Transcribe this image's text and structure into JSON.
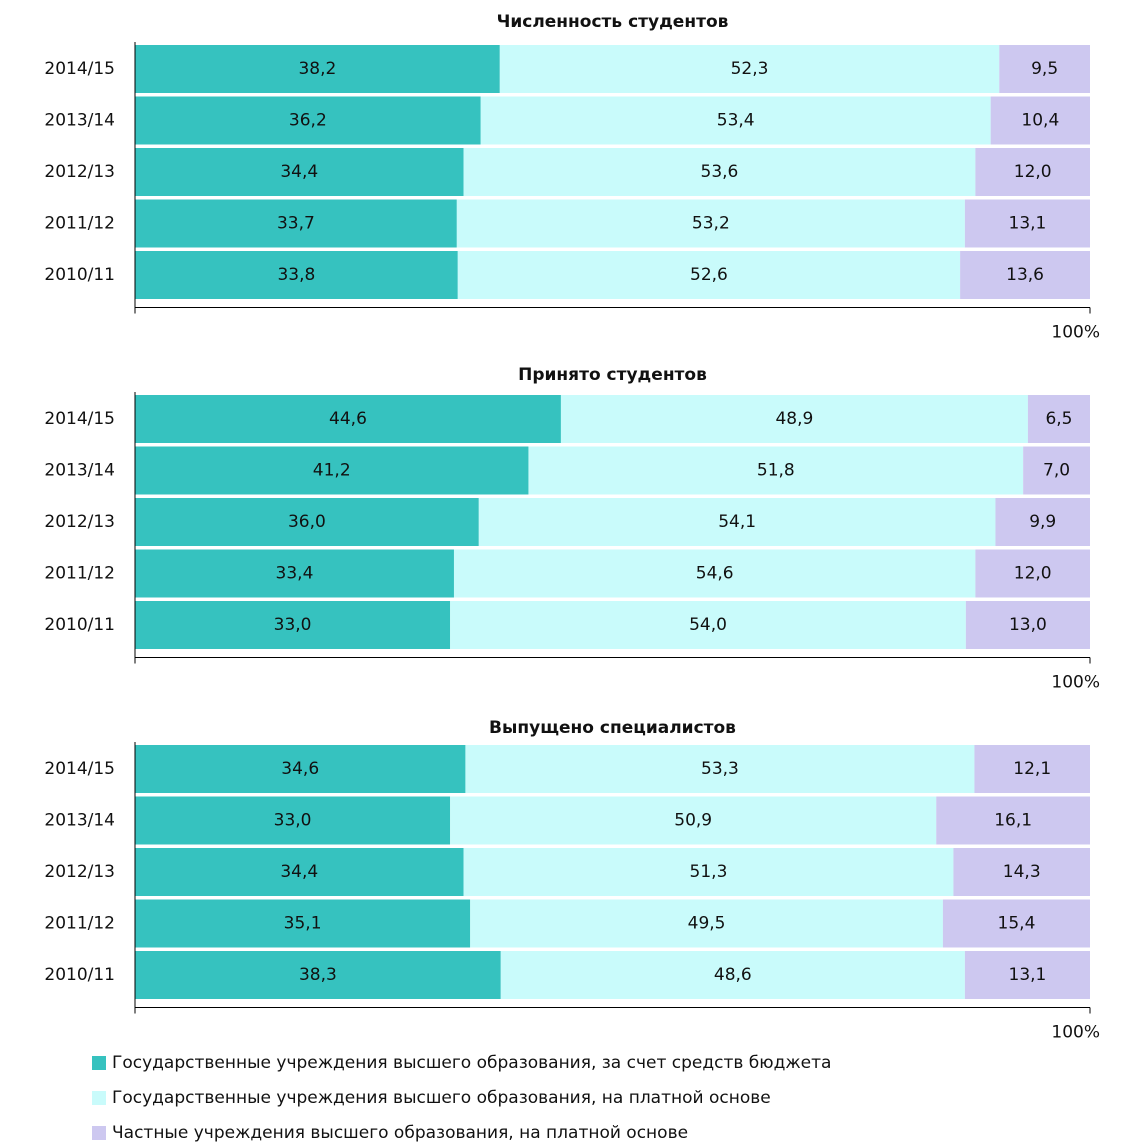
{
  "chart_data": [
    {
      "type": "stacked_bar_horizontal",
      "title": "Численность студентов",
      "categories": [
        "2014/15",
        "2013/14",
        "2012/13",
        "2011/12",
        "2010/11"
      ],
      "xlim": [
        0,
        100
      ],
      "xticks": [
        {
          "value": 100,
          "label": "100%"
        }
      ],
      "series": [
        {
          "name": "Государственные учреждения высшего образования, за счет средств бюджета",
          "color": "#36c2bf",
          "values": [
            38.2,
            36.2,
            34.4,
            33.7,
            33.8
          ],
          "value_labels": [
            "38,2",
            "36,2",
            "34,4",
            "33,7",
            "33,8"
          ]
        },
        {
          "name": "Государственные учреждения высшего образования, на платной основе",
          "color": "#c9fbfb",
          "values": [
            52.3,
            53.4,
            53.6,
            53.2,
            52.6
          ],
          "value_labels": [
            "52,3",
            "53,4",
            "53,6",
            "53,2",
            "52,6"
          ]
        },
        {
          "name": "Частные учреждения высшего образования, на платной основе",
          "color": "#cdc8f0",
          "values": [
            9.5,
            10.4,
            12.0,
            13.1,
            13.6
          ],
          "value_labels": [
            "9,5",
            "10,4",
            "12,0",
            "13,1",
            "13,6"
          ]
        }
      ]
    },
    {
      "type": "stacked_bar_horizontal",
      "title": "Принято студентов",
      "categories": [
        "2014/15",
        "2013/14",
        "2012/13",
        "2011/12",
        "2010/11"
      ],
      "xlim": [
        0,
        100
      ],
      "xticks": [
        {
          "value": 100,
          "label": "100%"
        }
      ],
      "series": [
        {
          "color": "#36c2bf",
          "values": [
            44.6,
            41.2,
            36.0,
            33.4,
            33.0
          ],
          "value_labels": [
            "44,6",
            "41,2",
            "36,0",
            "33,4",
            "33,0"
          ]
        },
        {
          "color": "#c9fbfb",
          "values": [
            48.9,
            51.8,
            54.1,
            54.6,
            54.0
          ],
          "value_labels": [
            "48,9",
            "51,8",
            "54,1",
            "54,6",
            "54,0"
          ]
        },
        {
          "color": "#cdc8f0",
          "values": [
            6.5,
            7.0,
            9.9,
            12.0,
            13.0
          ],
          "value_labels": [
            "6,5",
            "7,0",
            "9,9",
            "12,0",
            "13,0"
          ]
        }
      ]
    },
    {
      "type": "stacked_bar_horizontal",
      "title": "Выпущено специалистов",
      "categories": [
        "2014/15",
        "2013/14",
        "2012/13",
        "2011/12",
        "2010/11"
      ],
      "xlim": [
        0,
        100
      ],
      "xticks": [
        {
          "value": 100,
          "label": "100%"
        }
      ],
      "series": [
        {
          "color": "#36c2bf",
          "values": [
            34.6,
            33.0,
            34.4,
            35.1,
            38.3
          ],
          "value_labels": [
            "34,6",
            "33,0",
            "34,4",
            "35,1",
            "38,3"
          ]
        },
        {
          "color": "#c9fbfb",
          "values": [
            53.3,
            50.9,
            51.3,
            49.5,
            48.6
          ],
          "value_labels": [
            "53,3",
            "50,9",
            "51,3",
            "49,5",
            "48,6"
          ]
        },
        {
          "color": "#cdc8f0",
          "values": [
            12.1,
            16.1,
            14.3,
            15.4,
            13.1
          ],
          "value_labels": [
            "12,1",
            "16,1",
            "14,3",
            "15,4",
            "13,1"
          ]
        }
      ]
    }
  ]
}
